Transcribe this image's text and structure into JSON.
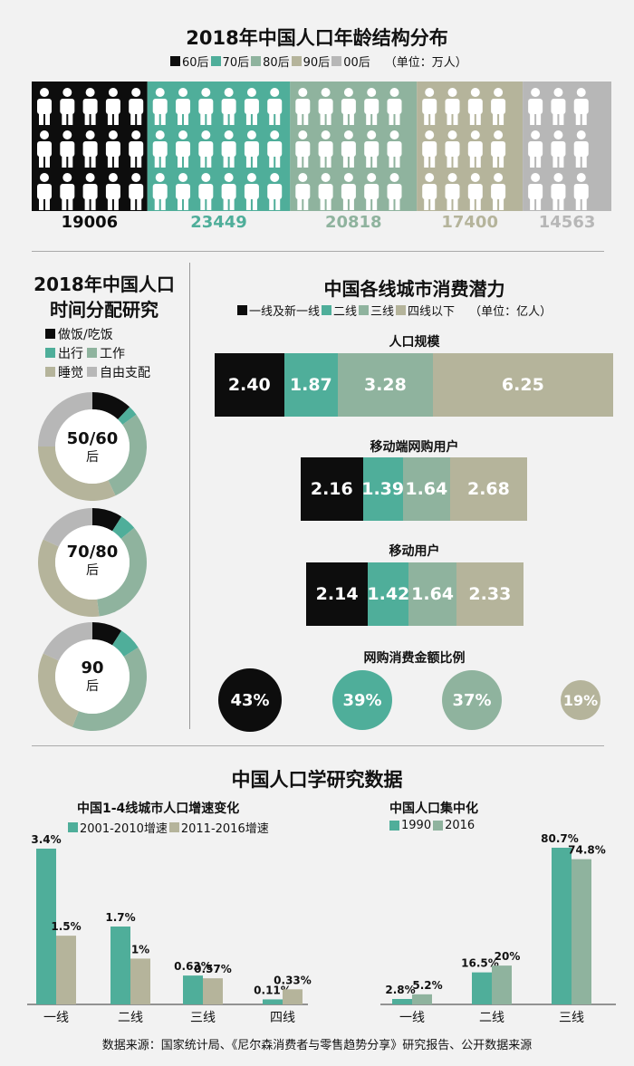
{
  "age": {
    "title": "2018年中国人口年龄结构分布",
    "unit": "（单位：万人）",
    "legend": [
      {
        "label": "60后",
        "color": "#0d0d0d"
      },
      {
        "label": "70后",
        "color": "#4fae9a"
      },
      {
        "label": "80后",
        "color": "#8fb39e"
      },
      {
        "label": "90后",
        "color": "#b5b49b"
      },
      {
        "label": "00后",
        "color": "#b7b7b7"
      }
    ]
  },
  "time": {
    "title_line1": "2018年中国人口",
    "title_line2": "时间分配研究",
    "legend_row1": [
      {
        "label": "做饭/吃饭",
        "color": "#0d0d0d"
      }
    ],
    "legend_row2": [
      {
        "label": "出行",
        "color": "#4fae9a"
      },
      {
        "label": "工作",
        "color": "#8fb39e"
      }
    ],
    "legend_row3": [
      {
        "label": "睡觉",
        "color": "#b5b49b"
      },
      {
        "label": "自由支配",
        "color": "#b7b7b7"
      }
    ],
    "donuts": [
      {
        "label1": "50/60",
        "label2": "后"
      },
      {
        "label1": "70/80",
        "label2": "后"
      },
      {
        "label1": "90",
        "label2": "后"
      }
    ]
  },
  "city": {
    "title": "中国各线城市消费潜力",
    "unit": "（单位：亿人）",
    "legend": [
      {
        "label": "一线及新一线",
        "color": "#0d0d0d"
      },
      {
        "label": "二线",
        "color": "#4fae9a"
      },
      {
        "label": "三线",
        "color": "#8fb39e"
      },
      {
        "label": "四线以下",
        "color": "#b5b49b"
      }
    ],
    "pie_title": "网购消费金额比例"
  },
  "demo": {
    "title": "中国人口学研究数据"
  },
  "source": "数据来源：国家统计局、《尼尔森消费者与零售趋势分享》研究报告、公开数据来源",
  "chart_data": [
    {
      "type": "bar",
      "title": "2018年中国人口年龄结构分布",
      "categories": [
        "60后",
        "70后",
        "80后",
        "90后",
        "00后"
      ],
      "values": [
        19006,
        23449,
        20818,
        17400,
        14563
      ],
      "colors": [
        "#0d0d0d",
        "#4fae9a",
        "#8fb39e",
        "#b5b49b",
        "#b7b7b7"
      ]
    },
    {
      "type": "pie",
      "title": "2018年中国人口时间分配研究",
      "categories": [
        "做饭/吃饭",
        "出行",
        "工作",
        "睡觉",
        "自由支配"
      ],
      "series": [
        {
          "name": "50/60后",
          "values": [
            0.12,
            0.03,
            0.28,
            0.32,
            0.25
          ]
        },
        {
          "name": "70/80后",
          "values": [
            0.09,
            0.05,
            0.34,
            0.34,
            0.18
          ]
        },
        {
          "name": "90后",
          "values": [
            0.09,
            0.07,
            0.4,
            0.26,
            0.18
          ]
        }
      ]
    },
    {
      "type": "bar",
      "title": "中国各线城市消费潜力",
      "categories": [
        "一线及新一线",
        "二线",
        "三线",
        "四线以下"
      ],
      "series": [
        {
          "name": "人口规模",
          "values": [
            2.4,
            1.87,
            3.28,
            6.25
          ]
        },
        {
          "name": "移动端网购用户",
          "values": [
            2.16,
            1.39,
            1.64,
            2.68
          ]
        },
        {
          "name": "移动用户",
          "values": [
            2.14,
            1.42,
            1.64,
            2.33
          ]
        }
      ]
    },
    {
      "type": "bubble",
      "title": "网购消费金额比例",
      "categories": [
        "一线及新一线",
        "二线",
        "三线",
        "四线以下"
      ],
      "values": [
        "43%",
        "39%",
        "37%",
        "19%"
      ]
    },
    {
      "type": "bar",
      "title": "中国1-4线城市人口增速变化",
      "categories": [
        "一线",
        "二线",
        "三线",
        "四线"
      ],
      "series": [
        {
          "name": "2001-2010增速",
          "values": [
            3.4,
            1.7,
            0.63,
            0.11
          ],
          "labels": [
            "3.4%",
            "1.7%",
            "0.63%",
            "0.11%"
          ],
          "color": "#4fae9a"
        },
        {
          "name": "2011-2016增速",
          "values": [
            1.5,
            1.0,
            0.57,
            0.33
          ],
          "labels": [
            "1.5%",
            "1%",
            "0.57%",
            "0.33%"
          ],
          "color": "#b5b49b"
        }
      ]
    },
    {
      "type": "bar",
      "title": "中国人口集中化",
      "categories": [
        "一线",
        "二线",
        "三线"
      ],
      "series": [
        {
          "name": "1990",
          "values": [
            2.8,
            16.5,
            80.7
          ],
          "labels": [
            "2.8%",
            "16.5%",
            "80.7%"
          ],
          "color": "#4fae9a"
        },
        {
          "name": "2016",
          "values": [
            5.2,
            20,
            74.8
          ],
          "labels": [
            "5.2%",
            "20%",
            "74.8%"
          ],
          "color": "#8fb39e"
        }
      ]
    }
  ]
}
